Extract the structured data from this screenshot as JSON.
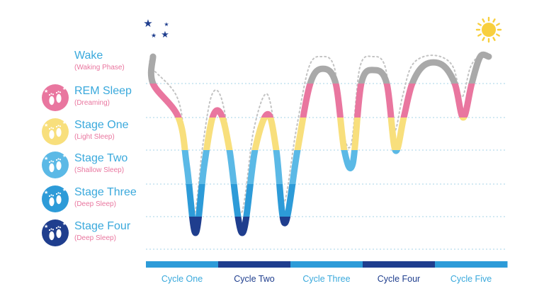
{
  "colors": {
    "wake": "#a9a9a9",
    "rem": "#e9769f",
    "stage_one": "#f8df7c",
    "stage_two": "#5bb9e6",
    "stage_three": "#2d9bd8",
    "stage_four": "#1f3e8e",
    "title_blue": "#3aa9dc",
    "sub_pink": "#e9769f",
    "gridline": "#b8dcec",
    "dotted_link": "#c3c3c3",
    "sun": "#f8cf3e",
    "stars": "#1f3e8e"
  },
  "icons": {
    "night": "stars-icon",
    "day": "sun-icon",
    "stage": "baby-feet-icon"
  },
  "chart_data": {
    "type": "line",
    "title": "",
    "stages": [
      {
        "key": "wake",
        "name": "Wake",
        "sub": "(Waking Phase)",
        "has_icon": false
      },
      {
        "key": "rem",
        "name": "REM Sleep",
        "sub": "(Dreaming)",
        "has_icon": true
      },
      {
        "key": "stage_one",
        "name": "Stage One",
        "sub": "(Light Sleep)",
        "has_icon": true
      },
      {
        "key": "stage_two",
        "name": "Stage Two",
        "sub": "(Shallow Sleep)",
        "has_icon": true
      },
      {
        "key": "stage_three",
        "name": "Stage Three",
        "sub": "(Deep Sleep)",
        "has_icon": true
      },
      {
        "key": "stage_four",
        "name": "Stage Four",
        "sub": "(Deep Sleep)",
        "has_icon": true
      }
    ],
    "depth_scale": "0 = Wake, 1 = REM Sleep, 2 = Stage One, 3 = Stage Two, 4 = Stage Three, 5 = Stage Four",
    "cycles": [
      "Cycle One",
      "Cycle Two",
      "Cycle Three",
      "Cycle Four",
      "Cycle Five"
    ],
    "cycle_band_colors": [
      "#2d9bd8",
      "#1f3e8e",
      "#2d9bd8",
      "#1f3e8e",
      "#2d9bd8"
    ],
    "hypnogram": [
      [
        0.0,
        0.0
      ],
      [
        0.0,
        1.0
      ],
      [
        0.3,
        2.0
      ],
      [
        0.4,
        3.5
      ],
      [
        0.5,
        5.5
      ],
      [
        0.6,
        3.5
      ],
      [
        0.7,
        2.0
      ],
      [
        0.8,
        1.9
      ],
      [
        0.9,
        3.0
      ],
      [
        1.05,
        5.5
      ],
      [
        1.2,
        3.0
      ],
      [
        1.35,
        1.9
      ],
      [
        1.45,
        3.0
      ],
      [
        1.55,
        5.2
      ],
      [
        1.7,
        3.0
      ],
      [
        1.85,
        1.0
      ],
      [
        2.0,
        0.45
      ],
      [
        2.15,
        1.0
      ],
      [
        2.25,
        3.0
      ],
      [
        2.35,
        3.4
      ],
      [
        2.45,
        1.0
      ],
      [
        2.6,
        0.5
      ],
      [
        2.75,
        1.0
      ],
      [
        2.85,
        3.0
      ],
      [
        2.95,
        2.0
      ],
      [
        3.05,
        1.0
      ],
      [
        3.2,
        0.3
      ],
      [
        3.4,
        0.3
      ],
      [
        3.55,
        1.0
      ],
      [
        3.65,
        2.0
      ],
      [
        3.75,
        1.0
      ],
      [
        3.85,
        0.0
      ],
      [
        3.95,
        0.0
      ]
    ]
  },
  "geometry": {}
}
